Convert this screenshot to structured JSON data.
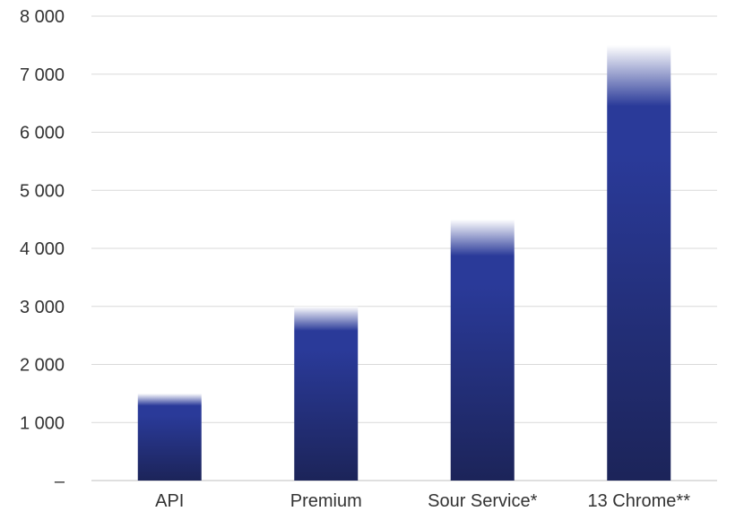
{
  "chart_data": {
    "type": "bar",
    "categories": [
      "API",
      "Premium",
      "Sour Service*",
      "13 Chrome**"
    ],
    "values": [
      1500,
      3000,
      4500,
      7500
    ],
    "title": "",
    "xlabel": "",
    "ylabel": "",
    "ylim": [
      0,
      8000
    ],
    "yticks": [
      0,
      1000,
      2000,
      3000,
      4000,
      5000,
      6000,
      7000,
      8000
    ],
    "ytick_labels": [
      "–",
      "1 000",
      "2 000",
      "3 000",
      "4 000",
      "5 000",
      "6 000",
      "7 000",
      "8 000"
    ],
    "grid": true,
    "legend": "none",
    "colors": {
      "bar_bottom": "#1c2459",
      "bar_mid": "#2a3a99",
      "bar_top_fade": "#ffffff",
      "grid": "#d9d9d9",
      "axis": "#bfbfbf",
      "text": "#333333"
    }
  }
}
